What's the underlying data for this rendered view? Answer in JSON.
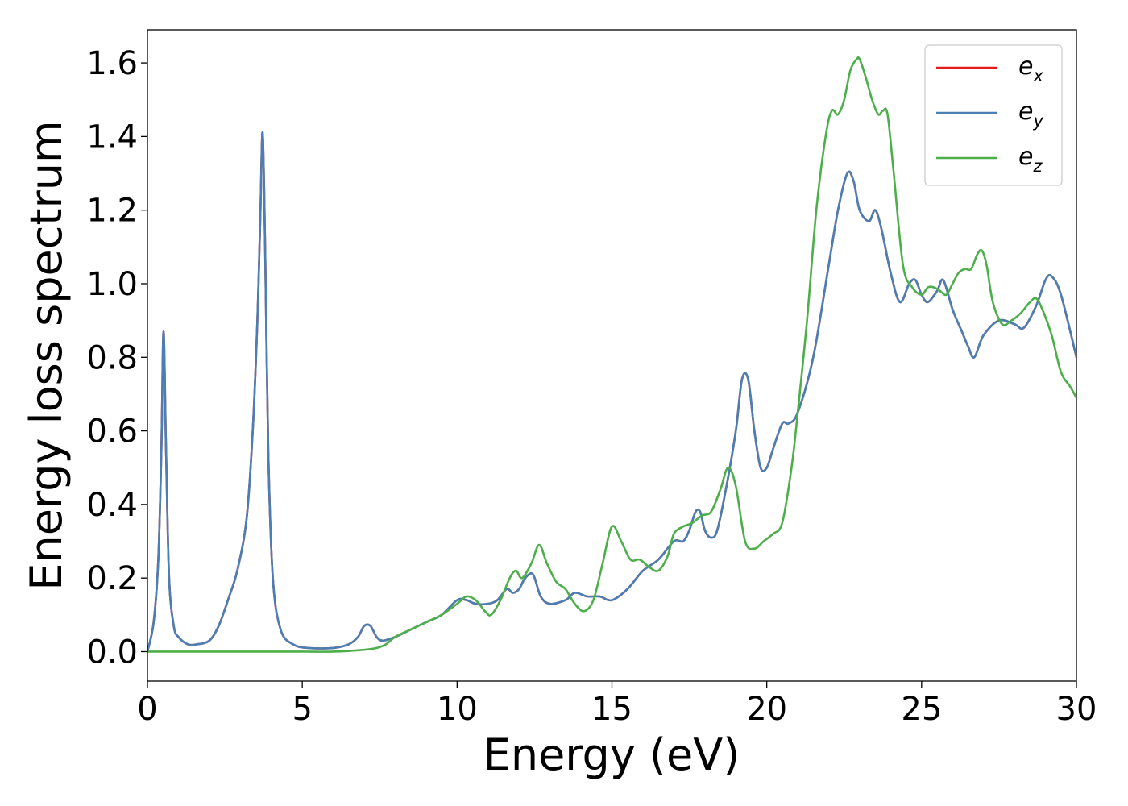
{
  "chart_data": {
    "type": "line",
    "xlabel": "Energy (eV)",
    "ylabel": "Energy loss spectrum",
    "xlim": [
      0,
      30
    ],
    "ylim": [
      -0.08,
      1.69
    ],
    "xticks": [
      0,
      5,
      10,
      15,
      20,
      25,
      30
    ],
    "xtick_labels": [
      "0",
      "5",
      "10",
      "15",
      "20",
      "25",
      "30"
    ],
    "yticks": [
      0.0,
      0.2,
      0.4,
      0.6,
      0.8,
      1.0,
      1.2,
      1.4,
      1.6
    ],
    "ytick_labels": [
      "0.0",
      "0.2",
      "0.4",
      "0.6",
      "0.8",
      "1.0",
      "1.2",
      "1.4",
      "1.6"
    ],
    "grid": false,
    "legend_position": "top-right",
    "series": [
      {
        "name": "e_x",
        "legend_main": "e",
        "legend_sub": "x",
        "color": "#e41a1c",
        "x": [
          0,
          0.2,
          0.35,
          0.45,
          0.52,
          0.6,
          0.7,
          0.85,
          1.0,
          1.3,
          1.6,
          2.0,
          2.3,
          2.6,
          2.9,
          3.2,
          3.4,
          3.55,
          3.65,
          3.72,
          3.8,
          3.9,
          4.05,
          4.3,
          4.7,
          5.2,
          6.0,
          6.5,
          6.8,
          7.0,
          7.2,
          7.4,
          7.6,
          8.0,
          8.5,
          9.0,
          9.5,
          10.0,
          10.3,
          10.6,
          11.0,
          11.3,
          11.6,
          11.8,
          12.0,
          12.2,
          12.45,
          12.7,
          13.0,
          13.5,
          13.8,
          14.2,
          14.6,
          15.0,
          15.5,
          16.0,
          16.5,
          17.0,
          17.3,
          17.5,
          17.7,
          17.85,
          18.0,
          18.2,
          18.4,
          18.7,
          19.0,
          19.2,
          19.4,
          19.6,
          19.8,
          20.0,
          20.2,
          20.5,
          20.7,
          21.0,
          21.5,
          22.0,
          22.3,
          22.6,
          22.8,
          23.0,
          23.3,
          23.5,
          23.7,
          24.0,
          24.3,
          24.6,
          24.8,
          25.0,
          25.2,
          25.5,
          25.7,
          26.0,
          26.3,
          26.5,
          26.7,
          27.0,
          27.5,
          28.0,
          28.3,
          28.7,
          29.0,
          29.2,
          29.5,
          30.0
        ],
        "y": [
          0.0,
          0.08,
          0.25,
          0.55,
          0.87,
          0.55,
          0.2,
          0.07,
          0.04,
          0.02,
          0.02,
          0.03,
          0.07,
          0.14,
          0.22,
          0.36,
          0.6,
          0.9,
          1.2,
          1.41,
          1.1,
          0.55,
          0.2,
          0.06,
          0.02,
          0.01,
          0.01,
          0.02,
          0.04,
          0.07,
          0.07,
          0.04,
          0.03,
          0.04,
          0.06,
          0.08,
          0.1,
          0.14,
          0.14,
          0.13,
          0.13,
          0.14,
          0.17,
          0.16,
          0.17,
          0.2,
          0.21,
          0.15,
          0.13,
          0.14,
          0.16,
          0.15,
          0.15,
          0.14,
          0.17,
          0.22,
          0.25,
          0.3,
          0.3,
          0.33,
          0.38,
          0.38,
          0.33,
          0.31,
          0.33,
          0.45,
          0.6,
          0.74,
          0.74,
          0.6,
          0.5,
          0.5,
          0.55,
          0.62,
          0.62,
          0.65,
          0.8,
          1.05,
          1.2,
          1.3,
          1.28,
          1.2,
          1.17,
          1.2,
          1.15,
          1.03,
          0.95,
          1.0,
          1.01,
          0.97,
          0.95,
          0.98,
          1.01,
          0.93,
          0.87,
          0.83,
          0.8,
          0.86,
          0.9,
          0.89,
          0.88,
          0.94,
          1.01,
          1.02,
          0.97,
          0.8
        ]
      },
      {
        "name": "e_y",
        "legend_main": "e",
        "legend_sub": "y",
        "color": "#4a7fb5",
        "x": [
          0,
          0.2,
          0.35,
          0.45,
          0.52,
          0.6,
          0.7,
          0.85,
          1.0,
          1.3,
          1.6,
          2.0,
          2.3,
          2.6,
          2.9,
          3.2,
          3.4,
          3.55,
          3.65,
          3.72,
          3.8,
          3.9,
          4.05,
          4.3,
          4.7,
          5.2,
          6.0,
          6.5,
          6.8,
          7.0,
          7.2,
          7.4,
          7.6,
          8.0,
          8.5,
          9.0,
          9.5,
          10.0,
          10.3,
          10.6,
          11.0,
          11.3,
          11.6,
          11.8,
          12.0,
          12.2,
          12.45,
          12.7,
          13.0,
          13.5,
          13.8,
          14.2,
          14.6,
          15.0,
          15.5,
          16.0,
          16.5,
          17.0,
          17.3,
          17.5,
          17.7,
          17.85,
          18.0,
          18.2,
          18.4,
          18.7,
          19.0,
          19.2,
          19.4,
          19.6,
          19.8,
          20.0,
          20.2,
          20.5,
          20.7,
          21.0,
          21.5,
          22.0,
          22.3,
          22.6,
          22.8,
          23.0,
          23.3,
          23.5,
          23.7,
          24.0,
          24.3,
          24.6,
          24.8,
          25.0,
          25.2,
          25.5,
          25.7,
          26.0,
          26.3,
          26.5,
          26.7,
          27.0,
          27.5,
          28.0,
          28.3,
          28.7,
          29.0,
          29.2,
          29.5,
          30.0
        ],
        "y": [
          0.0,
          0.08,
          0.25,
          0.55,
          0.87,
          0.55,
          0.2,
          0.07,
          0.04,
          0.02,
          0.02,
          0.03,
          0.07,
          0.14,
          0.22,
          0.36,
          0.6,
          0.9,
          1.2,
          1.41,
          1.1,
          0.55,
          0.2,
          0.06,
          0.02,
          0.01,
          0.01,
          0.02,
          0.04,
          0.07,
          0.07,
          0.04,
          0.03,
          0.04,
          0.06,
          0.08,
          0.1,
          0.14,
          0.14,
          0.13,
          0.13,
          0.14,
          0.17,
          0.16,
          0.17,
          0.2,
          0.21,
          0.15,
          0.13,
          0.14,
          0.16,
          0.15,
          0.15,
          0.14,
          0.17,
          0.22,
          0.25,
          0.3,
          0.3,
          0.33,
          0.38,
          0.38,
          0.33,
          0.31,
          0.33,
          0.45,
          0.6,
          0.74,
          0.74,
          0.6,
          0.5,
          0.5,
          0.55,
          0.62,
          0.62,
          0.65,
          0.8,
          1.05,
          1.2,
          1.3,
          1.28,
          1.2,
          1.17,
          1.2,
          1.15,
          1.03,
          0.95,
          1.0,
          1.01,
          0.97,
          0.95,
          0.98,
          1.01,
          0.93,
          0.87,
          0.83,
          0.8,
          0.86,
          0.9,
          0.89,
          0.88,
          0.94,
          1.01,
          1.02,
          0.97,
          0.8
        ]
      },
      {
        "name": "e_z",
        "legend_main": "e",
        "legend_sub": "z",
        "color": "#4daf4a",
        "x": [
          0,
          1.0,
          2.0,
          3.0,
          4.0,
          5.0,
          6.0,
          7.0,
          7.4,
          7.7,
          8.0,
          8.5,
          9.0,
          9.5,
          10.0,
          10.3,
          10.6,
          10.9,
          11.1,
          11.4,
          11.7,
          11.9,
          12.1,
          12.4,
          12.65,
          12.9,
          13.2,
          13.5,
          13.8,
          14.1,
          14.4,
          14.7,
          15.0,
          15.3,
          15.6,
          15.9,
          16.2,
          16.5,
          16.8,
          17.0,
          17.3,
          17.6,
          17.9,
          18.2,
          18.5,
          18.75,
          19.0,
          19.3,
          19.6,
          19.9,
          20.2,
          20.5,
          20.8,
          21.0,
          21.3,
          21.6,
          21.9,
          22.1,
          22.3,
          22.5,
          22.7,
          22.9,
          23.0,
          23.2,
          23.4,
          23.6,
          23.75,
          23.9,
          24.1,
          24.4,
          24.7,
          25.0,
          25.2,
          25.4,
          25.6,
          25.8,
          26.0,
          26.2,
          26.4,
          26.6,
          26.8,
          26.95,
          27.1,
          27.3,
          27.6,
          27.9,
          28.2,
          28.5,
          28.7,
          28.9,
          29.2,
          29.5,
          29.8,
          30.0
        ],
        "y": [
          0.0,
          0.0,
          0.0,
          0.0,
          0.0,
          0.0,
          0.0,
          0.005,
          0.01,
          0.02,
          0.04,
          0.06,
          0.08,
          0.1,
          0.13,
          0.15,
          0.14,
          0.11,
          0.1,
          0.14,
          0.2,
          0.22,
          0.2,
          0.24,
          0.29,
          0.24,
          0.19,
          0.17,
          0.13,
          0.11,
          0.14,
          0.24,
          0.34,
          0.3,
          0.25,
          0.25,
          0.23,
          0.22,
          0.26,
          0.32,
          0.34,
          0.35,
          0.37,
          0.38,
          0.44,
          0.5,
          0.45,
          0.3,
          0.28,
          0.3,
          0.32,
          0.35,
          0.5,
          0.65,
          0.9,
          1.2,
          1.4,
          1.47,
          1.46,
          1.5,
          1.58,
          1.61,
          1.61,
          1.56,
          1.5,
          1.46,
          1.47,
          1.46,
          1.3,
          1.05,
          0.99,
          0.97,
          0.99,
          0.99,
          0.98,
          0.97,
          1.0,
          1.03,
          1.04,
          1.04,
          1.08,
          1.09,
          1.05,
          0.95,
          0.89,
          0.9,
          0.92,
          0.95,
          0.96,
          0.93,
          0.86,
          0.76,
          0.72,
          0.69
        ]
      }
    ]
  }
}
